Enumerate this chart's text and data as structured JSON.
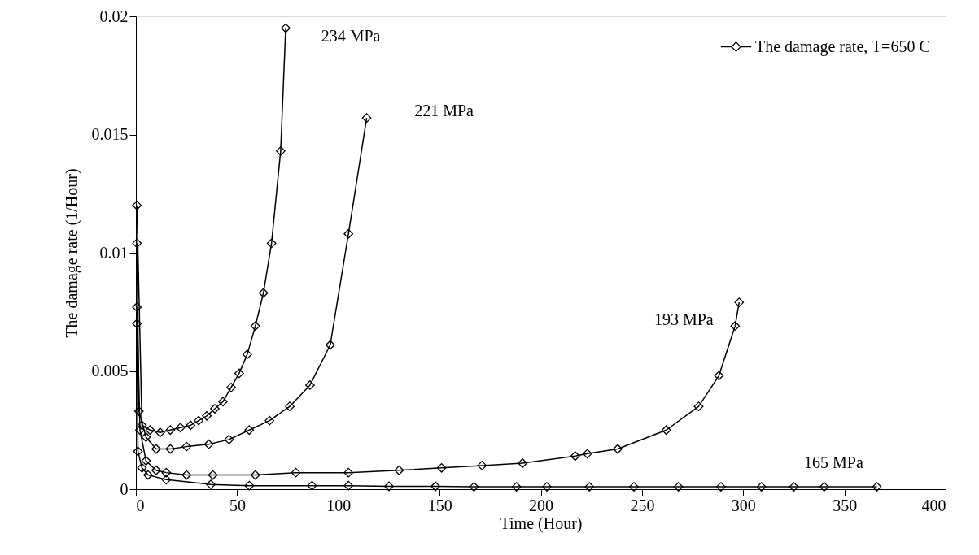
{
  "chart_data": {
    "type": "line",
    "xlabel": "Time (Hour)",
    "ylabel": "The damage rate (1/Hour)",
    "legend_title": "The damage rate, T=650 C",
    "legend": "top right",
    "grid": false,
    "marker": "diamond",
    "line_style": "solid",
    "xlim": [
      0,
      400
    ],
    "xticks": [
      0,
      50,
      100,
      150,
      200,
      250,
      300,
      350,
      400
    ],
    "ylim": [
      0,
      0.02
    ],
    "yticks": [
      0,
      0.005,
      0.01,
      0.015,
      0.02
    ],
    "series": [
      {
        "name": "234 MPa",
        "color": "#000000",
        "x": [
          0.5,
          3,
          7,
          12,
          17,
          22,
          27,
          31,
          35,
          39,
          43,
          47,
          51,
          55,
          59,
          63,
          67,
          71.5,
          74
        ],
        "values": [
          0.012,
          0.0027,
          0.0025,
          0.0024,
          0.0025,
          0.0026,
          0.0027,
          0.0029,
          0.0031,
          0.0034,
          0.0037,
          0.0043,
          0.0049,
          0.0057,
          0.0069,
          0.0083,
          0.0104,
          0.0143,
          0.0195
        ]
      },
      {
        "name": "221 MPa",
        "color": "#000000",
        "x": [
          0.5,
          1.5,
          5,
          10,
          17,
          25,
          36,
          46,
          56,
          66,
          76,
          86,
          96,
          105,
          114
        ],
        "values": [
          0.0104,
          0.0033,
          0.0022,
          0.0017,
          0.0017,
          0.0018,
          0.0019,
          0.0021,
          0.0025,
          0.0029,
          0.0035,
          0.0044,
          0.0061,
          0.0108,
          0.0157
        ]
      },
      {
        "name": "193 MPa",
        "color": "#000000",
        "x": [
          0.5,
          2,
          5,
          10,
          15,
          25,
          38,
          59,
          79,
          105,
          130,
          151,
          171,
          191,
          217,
          223,
          238,
          262,
          278,
          288,
          296,
          298
        ],
        "values": [
          0.0077,
          0.0025,
          0.0012,
          0.0008,
          0.0007,
          0.0006,
          0.0006,
          0.0006,
          0.0007,
          0.0007,
          0.0008,
          0.0009,
          0.001,
          0.0011,
          0.0014,
          0.0015,
          0.0017,
          0.0025,
          0.0035,
          0.0048,
          0.0069,
          0.0079
        ]
      },
      {
        "name": "165 MPa",
        "color": "#000000",
        "x": [
          0.5,
          1,
          3,
          6,
          15,
          37,
          56,
          87,
          105,
          125,
          148,
          167,
          188,
          203,
          224,
          246,
          268,
          289,
          309,
          325,
          340,
          366
        ],
        "values": [
          0.007,
          0.0016,
          0.0009,
          0.0006,
          0.0004,
          0.0002,
          0.00015,
          0.00015,
          0.00015,
          0.00012,
          0.00012,
          0.0001,
          0.0001,
          0.0001,
          0.0001,
          0.0001,
          0.0001,
          0.0001,
          0.0001,
          0.0001,
          0.0001,
          0.0001
        ]
      }
    ]
  }
}
